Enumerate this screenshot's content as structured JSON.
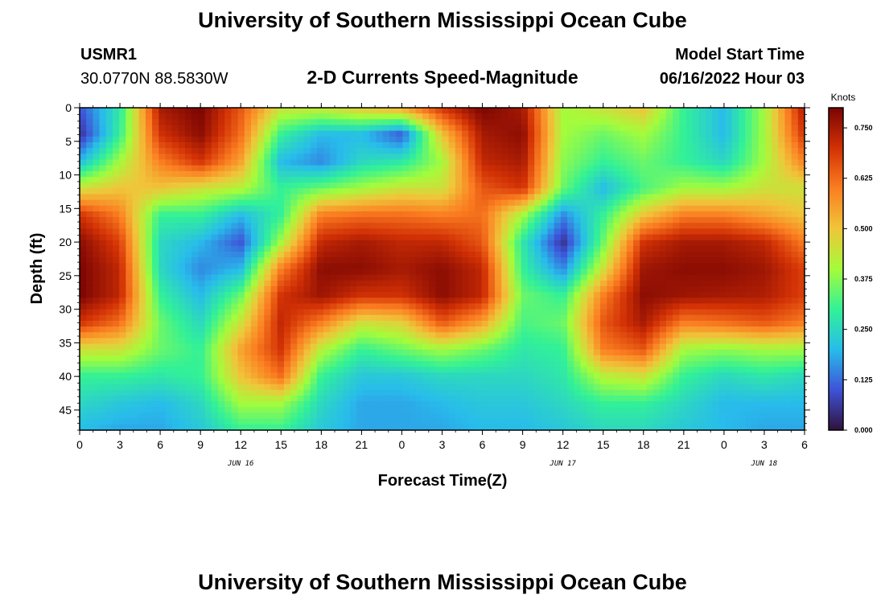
{
  "header": {
    "title": "University of Southern Mississippi Ocean Cube",
    "station_id": "USMR1",
    "coords": "30.0770N  88.5830W",
    "plot_title": "2-D Currents Speed-Magnitude",
    "model_label": "Model Start Time",
    "model_time": "06/16/2022 Hour 03",
    "footer_title": "University of Southern Mississippi Ocean Cube"
  },
  "colors": {
    "palette": [
      "#30123b",
      "#3e53d8",
      "#28bceb",
      "#32f197",
      "#a4fc3b",
      "#f0c53a",
      "#fb7e21",
      "#d23105",
      "#7a0403"
    ]
  },
  "chart_data": {
    "type": "heatmap",
    "title": "2-D Currents Speed-Magnitude",
    "xlabel": "Forecast Time(Z)",
    "ylabel": "Depth (ft)",
    "colorbar_label": "Knots",
    "xlim": [
      0,
      54
    ],
    "ylim": [
      48,
      0
    ],
    "x_ticks": [
      0,
      3,
      6,
      9,
      12,
      15,
      18,
      21,
      24,
      27,
      30,
      33,
      36,
      39,
      42,
      45,
      48,
      51,
      54
    ],
    "x_tick_labels": [
      "0",
      "3",
      "6",
      "9",
      "12",
      "15",
      "18",
      "21",
      "0",
      "3",
      "6",
      "9",
      "12",
      "15",
      "18",
      "21",
      "0",
      "3",
      "6"
    ],
    "y_ticks": [
      0,
      5,
      10,
      15,
      20,
      25,
      30,
      35,
      40,
      45
    ],
    "y_tick_labels": [
      "0",
      "5",
      "10",
      "15",
      "20",
      "25",
      "30",
      "35",
      "40",
      "45"
    ],
    "date_labels": [
      {
        "x": 12,
        "label": "JUN 16"
      },
      {
        "x": 36,
        "label": "JUN 17"
      },
      {
        "x": 51,
        "label": "JUN 18"
      }
    ],
    "colorbar_range": [
      0,
      0.8
    ],
    "colorbar_ticks": [
      "0.000",
      "0.125",
      "0.250",
      "0.375",
      "0.500",
      "0.625",
      "0.750"
    ],
    "colorbar_tick_values": [
      0,
      0.125,
      0.25,
      0.375,
      0.5,
      0.625,
      0.75
    ],
    "grid_x": [
      0,
      3,
      6,
      9,
      12,
      15,
      18,
      21,
      24,
      27,
      30,
      33,
      36,
      39,
      42,
      45,
      48,
      51,
      54
    ],
    "grid_y": [
      0,
      4,
      8,
      12,
      16,
      20,
      24,
      28,
      32,
      36,
      40,
      44,
      48
    ],
    "speed_knots": [
      [
        0.1,
        0.28,
        0.75,
        0.8,
        0.65,
        0.45,
        0.45,
        0.5,
        0.55,
        0.7,
        0.8,
        0.75,
        0.4,
        0.45,
        0.5,
        0.3,
        0.2,
        0.4,
        0.75
      ],
      [
        0.05,
        0.3,
        0.7,
        0.78,
        0.62,
        0.3,
        0.2,
        0.2,
        0.1,
        0.5,
        0.75,
        0.78,
        0.4,
        0.35,
        0.4,
        0.3,
        0.2,
        0.4,
        0.7
      ],
      [
        0.2,
        0.4,
        0.6,
        0.7,
        0.55,
        0.2,
        0.15,
        0.25,
        0.28,
        0.4,
        0.72,
        0.75,
        0.38,
        0.3,
        0.35,
        0.3,
        0.25,
        0.4,
        0.6
      ],
      [
        0.45,
        0.5,
        0.5,
        0.45,
        0.42,
        0.3,
        0.35,
        0.4,
        0.45,
        0.45,
        0.65,
        0.7,
        0.35,
        0.2,
        0.32,
        0.4,
        0.4,
        0.45,
        0.45
      ],
      [
        0.7,
        0.6,
        0.3,
        0.3,
        0.2,
        0.3,
        0.6,
        0.62,
        0.62,
        0.6,
        0.62,
        0.4,
        0.15,
        0.3,
        0.5,
        0.6,
        0.6,
        0.55,
        0.5
      ],
      [
        0.78,
        0.68,
        0.25,
        0.2,
        0.1,
        0.4,
        0.72,
        0.75,
        0.72,
        0.72,
        0.65,
        0.28,
        0.05,
        0.35,
        0.7,
        0.75,
        0.75,
        0.72,
        0.6
      ],
      [
        0.8,
        0.72,
        0.25,
        0.15,
        0.2,
        0.6,
        0.78,
        0.78,
        0.75,
        0.78,
        0.72,
        0.3,
        0.15,
        0.45,
        0.76,
        0.78,
        0.78,
        0.76,
        0.68
      ],
      [
        0.8,
        0.72,
        0.3,
        0.2,
        0.35,
        0.7,
        0.76,
        0.7,
        0.7,
        0.78,
        0.72,
        0.35,
        0.3,
        0.6,
        0.78,
        0.76,
        0.75,
        0.74,
        0.68
      ],
      [
        0.7,
        0.62,
        0.35,
        0.25,
        0.45,
        0.72,
        0.6,
        0.45,
        0.48,
        0.65,
        0.55,
        0.32,
        0.35,
        0.65,
        0.75,
        0.6,
        0.62,
        0.65,
        0.6
      ],
      [
        0.45,
        0.45,
        0.35,
        0.3,
        0.55,
        0.7,
        0.42,
        0.3,
        0.35,
        0.4,
        0.35,
        0.28,
        0.3,
        0.6,
        0.65,
        0.4,
        0.38,
        0.4,
        0.4
      ],
      [
        0.3,
        0.3,
        0.28,
        0.3,
        0.5,
        0.62,
        0.3,
        0.22,
        0.22,
        0.25,
        0.25,
        0.25,
        0.28,
        0.42,
        0.45,
        0.3,
        0.25,
        0.28,
        0.25
      ],
      [
        0.25,
        0.22,
        0.2,
        0.25,
        0.4,
        0.4,
        0.25,
        0.18,
        0.18,
        0.2,
        0.22,
        0.22,
        0.25,
        0.3,
        0.3,
        0.25,
        0.2,
        0.2,
        0.2
      ],
      [
        0.2,
        0.18,
        0.18,
        0.22,
        0.3,
        0.3,
        0.22,
        0.18,
        0.18,
        0.18,
        0.2,
        0.2,
        0.22,
        0.25,
        0.25,
        0.22,
        0.2,
        0.18,
        0.18
      ]
    ]
  }
}
